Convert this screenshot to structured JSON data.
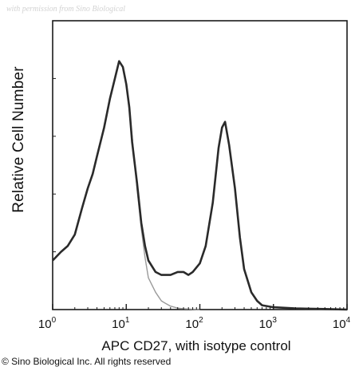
{
  "watermark": "with permission from Sino Biological",
  "copyright": "© Sino Biological Inc. All rights reserved",
  "chart_data": {
    "type": "area",
    "title": "",
    "xlabel": "APC CD27, with isotype control",
    "ylabel": "Relative Cell Number",
    "x_scale": "log",
    "xlim": [
      1,
      10000
    ],
    "ylim": [
      0,
      100
    ],
    "x_ticks": [
      {
        "value": 1,
        "base": "10",
        "exp": "0"
      },
      {
        "value": 10,
        "base": "10",
        "exp": "1"
      },
      {
        "value": 100,
        "base": "10",
        "exp": "2"
      },
      {
        "value": 1000,
        "base": "10",
        "exp": "3"
      },
      {
        "value": 10000,
        "base": "10",
        "exp": "4"
      }
    ],
    "grid": false,
    "series": [
      {
        "color": "#2a2a2a",
        "x": [
          1,
          1.3,
          1.6,
          2,
          2.5,
          3,
          3.5,
          4,
          5,
          6,
          7,
          8,
          9,
          10,
          11,
          12,
          14,
          16,
          18,
          20,
          25,
          30,
          40,
          50,
          60,
          70,
          80,
          100,
          120,
          150,
          180,
          200,
          220,
          250,
          300,
          350,
          400,
          500,
          600,
          700,
          1000,
          2000,
          5000,
          10000
        ],
        "y": [
          17,
          20,
          22,
          26,
          35,
          42,
          47,
          53,
          63,
          73,
          80,
          86,
          84,
          78,
          70,
          58,
          44,
          30,
          22,
          17,
          13,
          12,
          12,
          13,
          13,
          12,
          13,
          16,
          22,
          37,
          56,
          63,
          65,
          57,
          42,
          25,
          14,
          6,
          3,
          1.5,
          0.8,
          0.4,
          0.2,
          0
        ]
      },
      {
        "color": "#9a9a9a",
        "x": [
          10,
          12,
          14,
          16,
          18,
          20,
          25,
          30,
          35,
          40,
          50,
          60,
          80,
          100
        ],
        "y": [
          78,
          60,
          42,
          28,
          18,
          11,
          6,
          3,
          2,
          1.2,
          0.5,
          0.3,
          0.1,
          0
        ]
      }
    ]
  }
}
